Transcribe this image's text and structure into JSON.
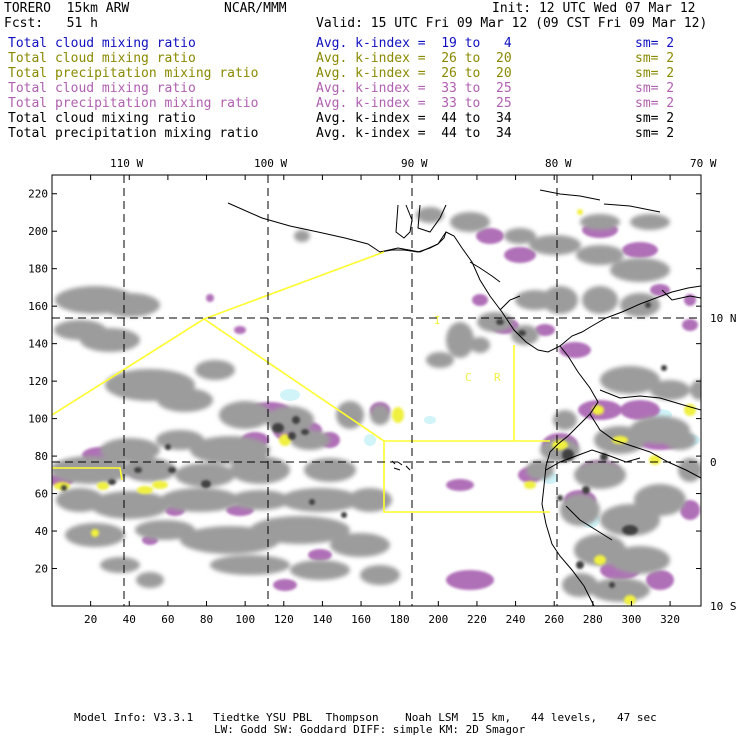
{
  "header": {
    "model": "TORERO  15km ARW",
    "org": "NCAR/MMM",
    "init": "Init: 12 UTC Wed 07 Mar 12",
    "fcst": "Fcst:   51 h",
    "valid": "Valid: 15 UTC Fri 09 Mar 12 (09 CST Fri 09 Mar 12)"
  },
  "legend": [
    {
      "field": "Total cloud mixing ratio",
      "kindex": "Avg. k-index =  19 to   4",
      "sm": "sm= 2",
      "color": "#1010c0"
    },
    {
      "field": "Total cloud mixing ratio",
      "kindex": "Avg. k-index =  26 to  20",
      "sm": "sm= 2",
      "color": "#8a8a00"
    },
    {
      "field": "Total precipitation mixing ratio",
      "kindex": "Avg. k-index =  26 to  20",
      "sm": "sm= 2",
      "color": "#8a8a00"
    },
    {
      "field": "Total cloud mixing ratio",
      "kindex": "Avg. k-index =  33 to  25",
      "sm": "sm= 2",
      "color": "#b060b0"
    },
    {
      "field": "Total precipitation mixing ratio",
      "kindex": "Avg. k-index =  33 to  25",
      "sm": "sm= 2",
      "color": "#b060b0"
    },
    {
      "field": "Total cloud mixing ratio",
      "kindex": "Avg. k-index =  44 to  34",
      "sm": "sm= 2",
      "color": "#000000"
    },
    {
      "field": "Total precipitation mixing ratio",
      "kindex": "Avg. k-index =  44 to  34",
      "sm": "sm= 2",
      "color": "#000000"
    }
  ],
  "map": {
    "lon_labels": [
      "110 W",
      "100 W",
      "90 W",
      "80 W",
      "70 W"
    ],
    "lat_labels_right": [
      "10 N",
      "0",
      "10 S"
    ],
    "y_ticks": [
      220,
      200,
      180,
      160,
      140,
      120,
      100,
      80,
      60,
      40,
      20
    ],
    "x_ticks": [
      20,
      40,
      60,
      80,
      100,
      120,
      140,
      160,
      180,
      200,
      220,
      240,
      260,
      280,
      300,
      320
    ],
    "grid_x": [
      39,
      113,
      186,
      260
    ],
    "grid_y": [
      73,
      150
    ],
    "x_range": [
      0,
      336
    ],
    "y_range": [
      0,
      230
    ],
    "box_labels": [
      "I",
      "C",
      "R"
    ],
    "colors": {
      "gray": "#9c9c9c",
      "dark": "#404040",
      "purple": "#b070b8",
      "yellow": "#f0f040",
      "cyan": "#d0f4f8",
      "outline": "#ffff30"
    }
  },
  "footer": {
    "line1": "Model Info: V3.3.1   Tiedtke YSU PBL  Thompson    Noah LSM  15 km,   44 levels,   47 sec",
    "line2": "LW: Godd SW: Goddard DIFF: simple KM: 2D Smagor"
  }
}
